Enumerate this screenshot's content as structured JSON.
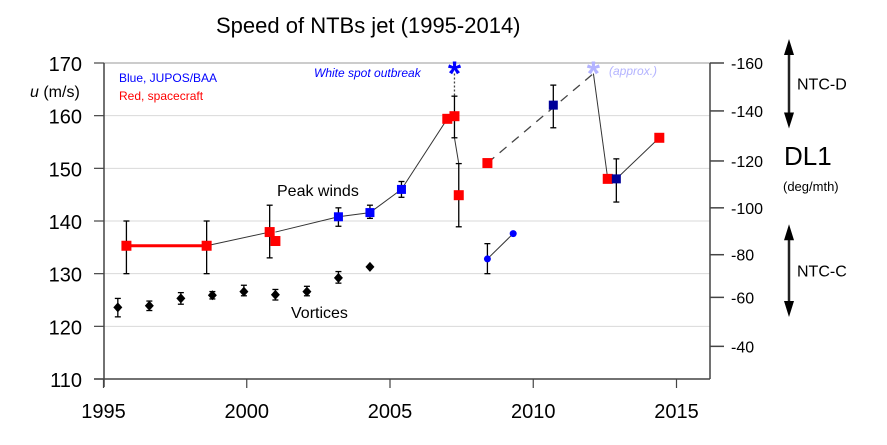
{
  "chart_data": {
    "type": "scatter",
    "title": "Speed of NTBs jet  (1995-2014)",
    "xlabel": "",
    "ylabel": "u (m/s)",
    "ylabel_italic": "u",
    "ylabel_unit": " (m/s)",
    "xlim": [
      1995,
      2016.1
    ],
    "ylim": [
      110,
      170
    ],
    "x_ticks": [
      1995,
      2000,
      2005,
      2010,
      2015
    ],
    "y_ticks": [
      110,
      120,
      130,
      140,
      150,
      160,
      170
    ],
    "grid": true,
    "y2": {
      "label": "DL1",
      "unit": "(deg/mth)",
      "ticks": [
        {
          "label": "-160",
          "u": 170.0
        },
        {
          "label": "-140",
          "u": 160.9
        },
        {
          "label": "-120",
          "u": 151.4
        },
        {
          "label": "-100",
          "u": 142.5
        },
        {
          "label": "-80",
          "u": 133.6
        },
        {
          "label": "-60",
          "u": 125.5
        },
        {
          "label": "-40",
          "u": 116.2
        }
      ],
      "ranges": [
        {
          "label": "NTC-D",
          "from": -170,
          "to": -133
        },
        {
          "label": "NTC-C",
          "from": -93,
          "to": -52
        }
      ]
    },
    "legend": [
      {
        "label": "Blue, JUPOS/BAA",
        "color": "#0000ff"
      },
      {
        "label": "Red, spacecraft",
        "color": "#ff0000"
      }
    ],
    "annotations": {
      "peak_winds": "Peak winds",
      "vortices": "Vortices",
      "white_spot": "White spot outbreak",
      "approx": "(approx.)"
    },
    "colors": {
      "red": "#ff0000",
      "blue": "#0000ff",
      "dark_blue": "#000099",
      "light_blue": "#b3b3ff",
      "black": "#000000",
      "grid": "#d9d9d9"
    },
    "series": [
      {
        "name": "Peak winds (spacecraft)",
        "color": "red",
        "marker": "square",
        "points": [
          {
            "x": 1995.8,
            "y": 135.3,
            "err": [
              130,
              140
            ]
          },
          {
            "x": 1998.6,
            "y": 135.3,
            "err": [
              130,
              140
            ]
          },
          {
            "x": 2000.8,
            "y": 137.9,
            "err": [
              133,
              143
            ]
          },
          {
            "x": 2001.0,
            "y": 136.2
          },
          {
            "x": 2007.0,
            "y": 159.4
          },
          {
            "x": 2007.25,
            "y": 159.9,
            "err": [
              155.8,
              163.7
            ]
          },
          {
            "x": 2007.4,
            "y": 144.9,
            "err": [
              138.9,
              150.9
            ]
          },
          {
            "x": 2008.4,
            "y": 151.0
          },
          {
            "x": 2012.6,
            "y": 148.0
          },
          {
            "x": 2014.4,
            "y": 155.8
          }
        ]
      },
      {
        "name": "Peak winds (JUPOS/BAA)",
        "color": "blue",
        "marker": "square",
        "points": [
          {
            "x": 2003.2,
            "y": 140.8,
            "err": [
              139.0,
              142.5
            ]
          },
          {
            "x": 2004.3,
            "y": 141.6,
            "err": [
              140.5,
              143.0
            ]
          },
          {
            "x": 2005.4,
            "y": 146.0,
            "err": [
              144.5,
              147.5
            ]
          }
        ]
      },
      {
        "name": "Peak winds (JUPOS/BAA, post-outbreak)",
        "color": "dark_blue",
        "marker": "square",
        "points": [
          {
            "x": 2010.7,
            "y": 162.0,
            "err": [
              157.7,
              165.8
            ]
          },
          {
            "x": 2012.9,
            "y": 148.0,
            "err": [
              143.6,
              151.8
            ]
          }
        ]
      },
      {
        "name": "Post-outbreak (JUPOS/BAA)",
        "color": "blue",
        "marker": "circle",
        "points": [
          {
            "x": 2008.4,
            "y": 132.8,
            "err": [
              130.0,
              135.7
            ]
          },
          {
            "x": 2009.3,
            "y": 137.6
          }
        ]
      },
      {
        "name": "Vortices",
        "color": "black",
        "marker": "diamond",
        "points": [
          {
            "x": 1995.5,
            "y": 123.6,
            "err": [
              121.8,
              125.3
            ]
          },
          {
            "x": 1996.6,
            "y": 123.9,
            "err": [
              123.0,
              124.8
            ]
          },
          {
            "x": 1997.7,
            "y": 125.3,
            "err": [
              124.2,
              126.4
            ]
          },
          {
            "x": 1998.8,
            "y": 125.9,
            "err": [
              125.2,
              126.6
            ]
          },
          {
            "x": 1999.9,
            "y": 126.6,
            "err": [
              125.8,
              127.8
            ]
          },
          {
            "x": 2001.0,
            "y": 126.0,
            "err": [
              125.0,
              127.0
            ]
          },
          {
            "x": 2002.1,
            "y": 126.6,
            "err": [
              125.8,
              127.6
            ]
          },
          {
            "x": 2003.2,
            "y": 129.2,
            "err": [
              128.2,
              130.4
            ]
          },
          {
            "x": 2004.3,
            "y": 131.3
          }
        ]
      }
    ],
    "outbreaks": [
      {
        "x": 2007.25,
        "y": 168.9,
        "color": "blue",
        "label_key": "white_spot"
      },
      {
        "x": 2012.1,
        "y": 168.9,
        "color": "light_blue",
        "label_key": "approx"
      }
    ],
    "connectors": [
      {
        "style": "thick-red",
        "from": [
          1995.8,
          135.3
        ],
        "to": [
          1998.6,
          135.3
        ]
      },
      {
        "style": "solid",
        "from": [
          1998.6,
          135.3
        ],
        "to": [
          2000.8,
          137.9
        ]
      },
      {
        "style": "solid",
        "from": [
          2001.0,
          137.9
        ],
        "to": [
          2003.2,
          140.8
        ]
      },
      {
        "style": "solid",
        "from": [
          2003.2,
          140.8
        ],
        "to": [
          2004.3,
          141.6
        ]
      },
      {
        "style": "solid",
        "from": [
          2004.3,
          141.6
        ],
        "to": [
          2005.4,
          146.0
        ]
      },
      {
        "style": "solid",
        "from": [
          2005.4,
          146.0
        ],
        "to": [
          2007.0,
          159.4
        ]
      },
      {
        "style": "dotted",
        "from": [
          2007.25,
          168.0
        ],
        "to": [
          2007.25,
          163.7
        ]
      },
      {
        "style": "solid",
        "from": [
          2007.25,
          155.8
        ],
        "to": [
          2007.4,
          150.9
        ]
      },
      {
        "style": "dashed",
        "from": [
          2008.4,
          151.0
        ],
        "to": [
          2012.1,
          168.0
        ]
      },
      {
        "style": "solid",
        "from": [
          2012.1,
          168.0
        ],
        "to": [
          2012.6,
          148.0
        ]
      },
      {
        "style": "solid",
        "from": [
          2012.9,
          148.0
        ],
        "to": [
          2014.4,
          155.8
        ]
      },
      {
        "style": "solid",
        "from": [
          2008.4,
          132.8
        ],
        "to": [
          2009.3,
          137.6
        ]
      }
    ]
  }
}
